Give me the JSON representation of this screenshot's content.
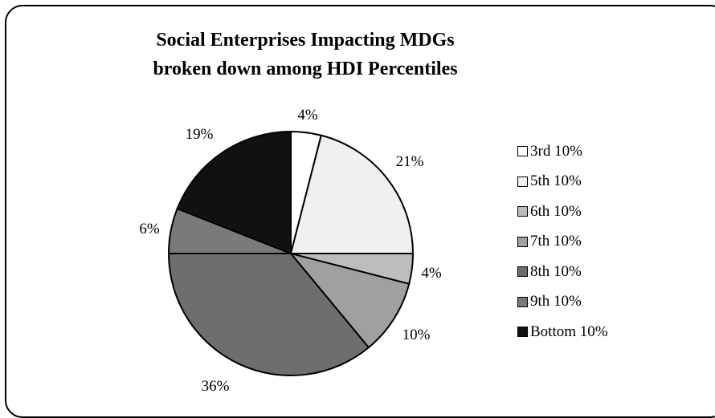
{
  "chart_data": {
    "type": "pie",
    "title": [
      "Social Enterprises Impacting MDGs",
      "broken down among HDI Percentiles"
    ],
    "legend_position": "right",
    "categories": [
      "3rd 10%",
      "5th 10%",
      "6th 10%",
      "7th 10%",
      "8th 10%",
      "9th 10%",
      "Bottom 10%"
    ],
    "values": [
      4,
      21,
      4,
      10,
      36,
      6,
      19
    ],
    "labels": [
      "4%",
      "21%",
      "4%",
      "10%",
      "36%",
      "6%",
      "19%"
    ],
    "colors": [
      "#ffffff",
      "#f0f0f0",
      "#bdbdbd",
      "#a0a0a0",
      "#6e6e6e",
      "#7a7a7a",
      "#111111"
    ]
  }
}
